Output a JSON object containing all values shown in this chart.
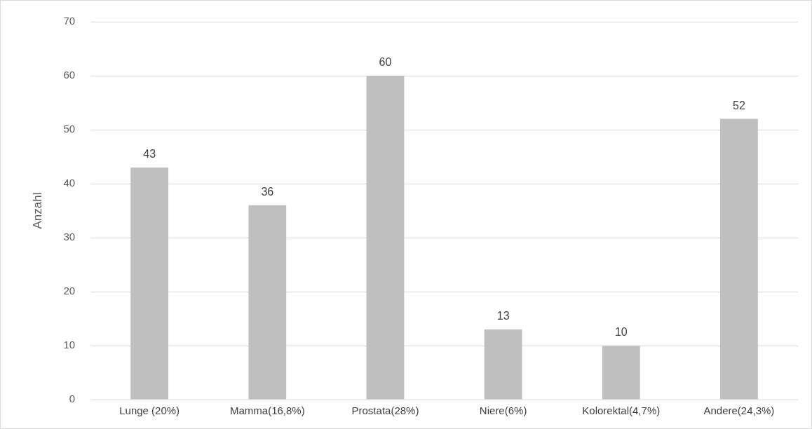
{
  "chart_data": {
    "type": "bar",
    "ylabel": "Anzahl",
    "categories": [
      "Lunge (20%)",
      "Mamma(16,8%)",
      "Prostata(28%)",
      "Niere(6%)",
      "Kolorektal(4,7%)",
      "Andere(24,3%)"
    ],
    "values": [
      43,
      36,
      60,
      13,
      10,
      52
    ],
    "color": "#bfbfbf",
    "ylim": [
      0,
      70
    ],
    "yticks": [
      0,
      10,
      20,
      30,
      40,
      50,
      60,
      70
    ],
    "grid": "y",
    "data_labels": true,
    "legend": false
  }
}
